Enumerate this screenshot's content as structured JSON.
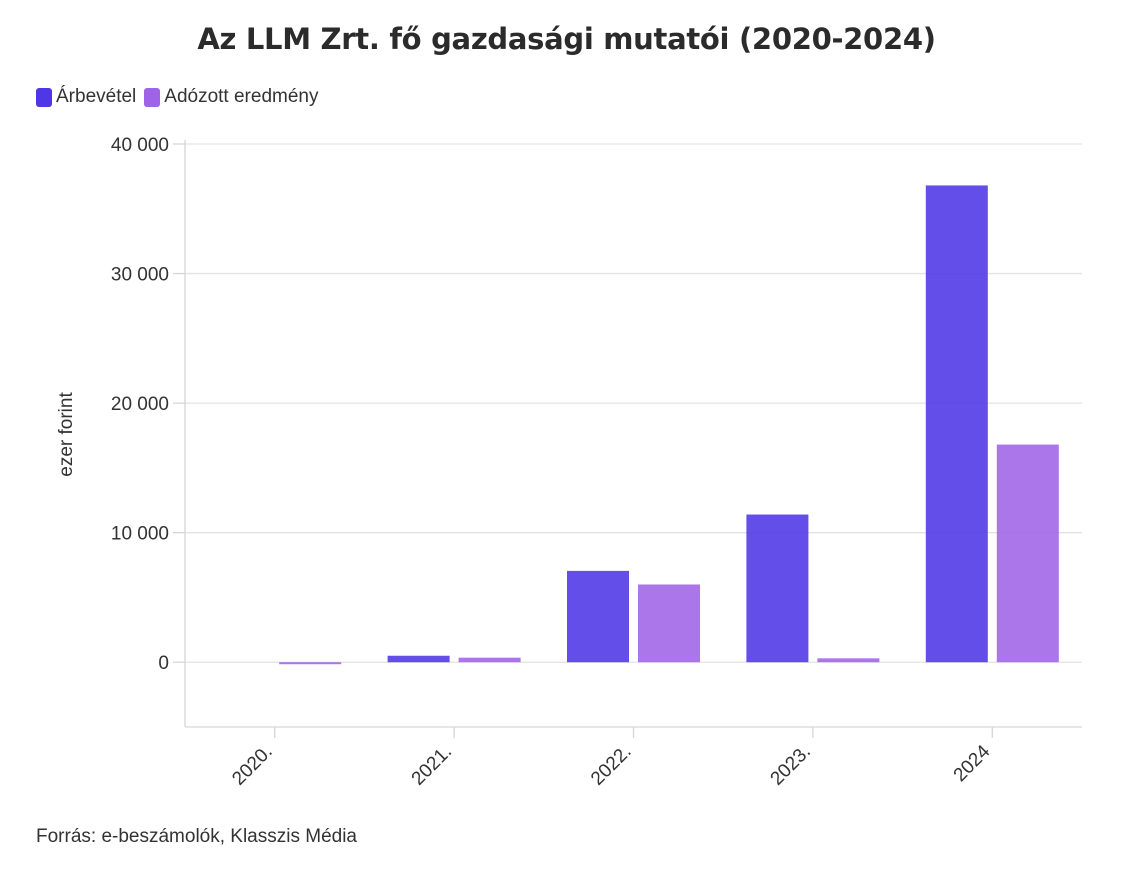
{
  "title": "Az LLM Zrt. fő gazdasági mutatói (2020-2024)",
  "source": "Forrás: e-beszámolók, Klasszis Média",
  "colors": {
    "series_0": "#4f36e6",
    "series_1": "#9e63e6",
    "grid": "#e3e3e3",
    "axis": "#d6d6d6"
  },
  "chart_data": {
    "type": "bar",
    "title": "Az LLM Zrt. fő gazdasági mutatói (2020-2024)",
    "xlabel": "",
    "ylabel": "ezer forint",
    "categories": [
      "2020.",
      "2021.",
      "2022.",
      "2023.",
      "2024"
    ],
    "series": [
      {
        "name": "Árbevétel",
        "values": [
          0,
          500,
          7050,
          11400,
          36800
        ]
      },
      {
        "name": "Adózott eredmény",
        "values": [
          -150,
          350,
          6000,
          300,
          16800
        ]
      }
    ],
    "ylim": [
      -5000,
      40000
    ],
    "yticks": [
      0,
      10000,
      20000,
      30000,
      40000
    ],
    "ytick_labels": [
      "0",
      "10 000",
      "20 000",
      "30 000",
      "40 000"
    ],
    "grid": true,
    "legend_position": "top-left"
  }
}
